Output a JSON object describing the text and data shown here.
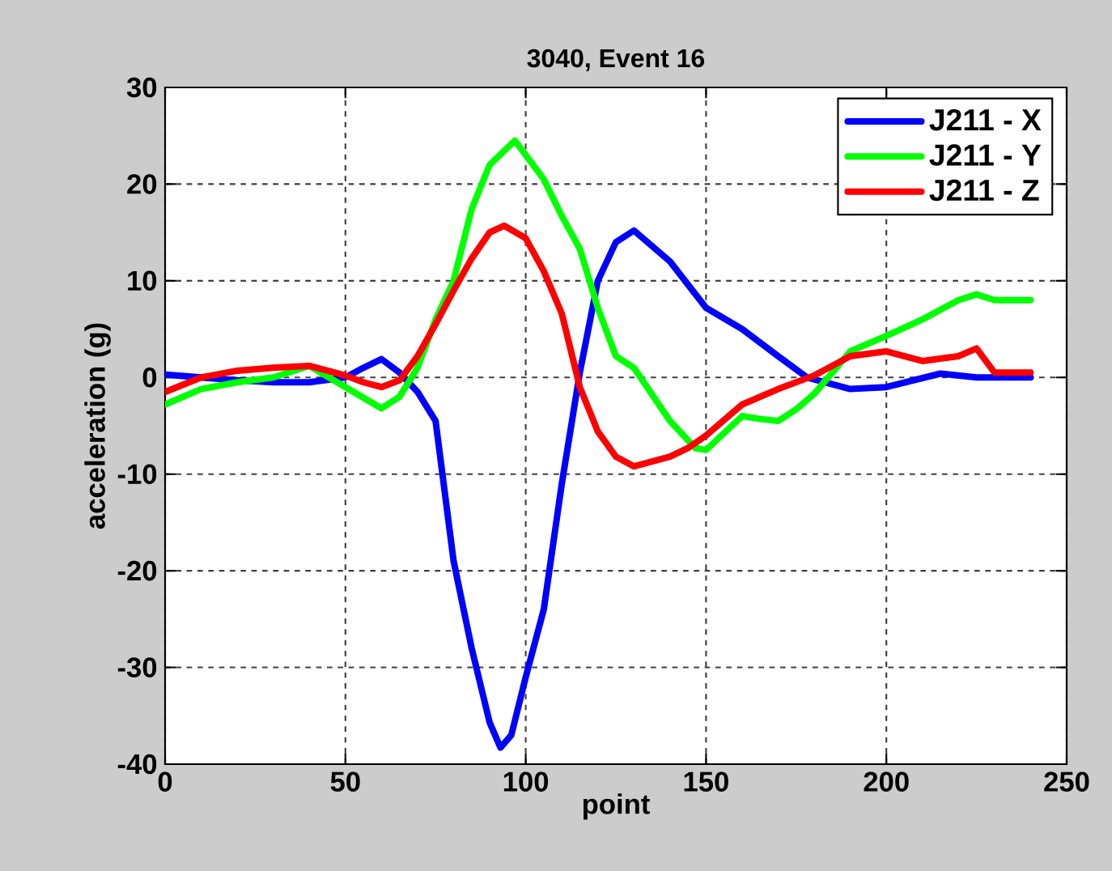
{
  "chart_data": {
    "type": "line",
    "title": "3040, Event 16",
    "xlabel": "point",
    "ylabel": "acceleration (g)",
    "xlim": [
      0,
      250
    ],
    "ylim": [
      -40,
      30
    ],
    "xticks": [
      0,
      50,
      100,
      150,
      200,
      250
    ],
    "yticks": [
      -40,
      -30,
      -20,
      -10,
      0,
      10,
      20,
      30
    ],
    "grid": true,
    "legend": "top right",
    "series": [
      {
        "name": "J211 - X",
        "color": "#0000ff",
        "x": [
          0,
          10,
          20,
          30,
          40,
          50,
          55,
          60,
          65,
          70,
          75,
          80,
          85,
          90,
          93,
          96,
          100,
          105,
          110,
          115,
          120,
          125,
          130,
          140,
          150,
          160,
          170,
          178,
          190,
          200,
          215,
          225,
          240
        ],
        "values": [
          0.3,
          0,
          -0.3,
          -0.5,
          -0.5,
          0,
          1,
          1.9,
          0.5,
          -1.5,
          -4.5,
          -19,
          -28,
          -35.7,
          -38.3,
          -37,
          -31,
          -24,
          -11,
          0.5,
          10,
          14,
          15.2,
          12,
          7.2,
          5,
          2.2,
          0,
          -1.2,
          -1,
          0.4,
          0,
          0
        ]
      },
      {
        "name": "J211 - Y",
        "color": "#00ff00",
        "x": [
          0,
          10,
          20,
          30,
          40,
          50,
          60,
          65,
          70,
          75,
          80,
          85,
          90,
          97,
          105,
          110,
          115,
          120,
          125,
          130,
          140,
          147,
          150,
          160,
          165,
          170,
          175,
          180,
          185,
          190,
          200,
          210,
          220,
          225,
          230,
          240
        ],
        "values": [
          -2.8,
          -1.2,
          -0.5,
          0,
          1.2,
          -1,
          -3.2,
          -2,
          1,
          6,
          10,
          17.4,
          22,
          24.5,
          20.5,
          16.7,
          13.3,
          7.2,
          2.2,
          1,
          -4.5,
          -7.3,
          -7.5,
          -4,
          -4.3,
          -4.5,
          -3.3,
          -1.7,
          0.5,
          2.7,
          4.3,
          6,
          8,
          8.6,
          8,
          8
        ]
      },
      {
        "name": "J211 - Z",
        "color": "#ff0000",
        "x": [
          0,
          10,
          20,
          30,
          40,
          50,
          55,
          60,
          65,
          70,
          75,
          80,
          85,
          90,
          94,
          100,
          105,
          110,
          115,
          120,
          125,
          130,
          140,
          145,
          150,
          160,
          170,
          180,
          190,
          200,
          210,
          220,
          225,
          230,
          240
        ],
        "values": [
          -1.5,
          0,
          0.7,
          1,
          1.2,
          0.2,
          -0.5,
          -1,
          -0.3,
          2.2,
          5.5,
          9,
          12.3,
          15,
          15.7,
          14.4,
          11,
          6.6,
          -1,
          -5.6,
          -8.2,
          -9.2,
          -8.2,
          -7.3,
          -6,
          -2.8,
          -1.2,
          0.2,
          2.2,
          2.7,
          1.7,
          2.2,
          3,
          0.5,
          0.5
        ]
      }
    ]
  }
}
